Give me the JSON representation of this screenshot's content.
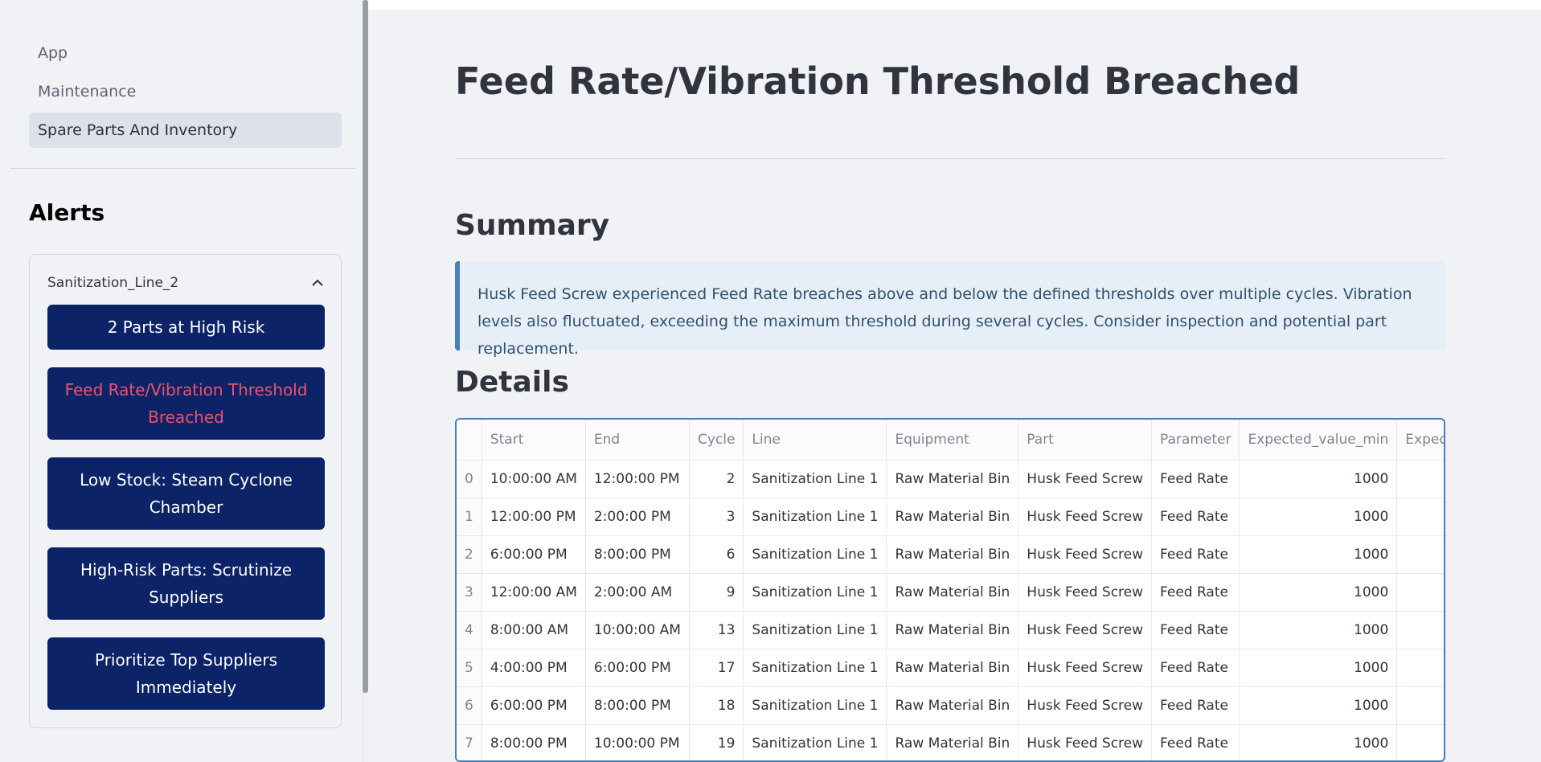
{
  "nav": {
    "items": [
      {
        "label": "App",
        "active": false
      },
      {
        "label": "Maintenance",
        "active": false
      },
      {
        "label": "Spare Parts And Inventory",
        "active": true
      }
    ]
  },
  "alerts": {
    "title": "Alerts",
    "group_label": "Sanitization_Line_2",
    "buttons": [
      {
        "label": "2 Parts at High Risk",
        "active": false
      },
      {
        "label": "Feed Rate/Vibration Threshold Breached",
        "active": true
      },
      {
        "label": "Low Stock: Steam Cyclone Chamber",
        "active": false
      },
      {
        "label": "High-Risk Parts: Scrutinize Suppliers",
        "active": false
      },
      {
        "label": "Prioritize Top Suppliers Immediately",
        "active": false
      }
    ]
  },
  "main": {
    "title": "Feed Rate/Vibration Threshold Breached",
    "summary_heading": "Summary",
    "summary_text": "Husk Feed Screw experienced Feed Rate breaches above and below the defined thresholds over multiple cycles. Vibration levels also fluctuated, exceeding the maximum threshold during several cycles. Consider inspection and potential part replacement.",
    "details_heading": "Details"
  },
  "table": {
    "columns": [
      "",
      "Start",
      "End",
      "Cycle",
      "Line",
      "Equipment",
      "Part",
      "Parameter",
      "Expected_value_min",
      "Expected_"
    ],
    "rows": [
      [
        "0",
        "10:00:00 AM",
        "12:00:00 PM",
        "2",
        "Sanitization Line 1",
        "Raw Material Bin",
        "Husk Feed Screw",
        "Feed Rate",
        "1000",
        ""
      ],
      [
        "1",
        "12:00:00 PM",
        "2:00:00 PM",
        "3",
        "Sanitization Line 1",
        "Raw Material Bin",
        "Husk Feed Screw",
        "Feed Rate",
        "1000",
        ""
      ],
      [
        "2",
        "6:00:00 PM",
        "8:00:00 PM",
        "6",
        "Sanitization Line 1",
        "Raw Material Bin",
        "Husk Feed Screw",
        "Feed Rate",
        "1000",
        ""
      ],
      [
        "3",
        "12:00:00 AM",
        "2:00:00 AM",
        "9",
        "Sanitization Line 1",
        "Raw Material Bin",
        "Husk Feed Screw",
        "Feed Rate",
        "1000",
        ""
      ],
      [
        "4",
        "8:00:00 AM",
        "10:00:00 AM",
        "13",
        "Sanitization Line 1",
        "Raw Material Bin",
        "Husk Feed Screw",
        "Feed Rate",
        "1000",
        ""
      ],
      [
        "5",
        "4:00:00 PM",
        "6:00:00 PM",
        "17",
        "Sanitization Line 1",
        "Raw Material Bin",
        "Husk Feed Screw",
        "Feed Rate",
        "1000",
        ""
      ],
      [
        "6",
        "6:00:00 PM",
        "8:00:00 PM",
        "18",
        "Sanitization Line 1",
        "Raw Material Bin",
        "Husk Feed Screw",
        "Feed Rate",
        "1000",
        ""
      ],
      [
        "7",
        "8:00:00 PM",
        "10:00:00 PM",
        "19",
        "Sanitization Line 1",
        "Raw Material Bin",
        "Husk Feed Screw",
        "Feed Rate",
        "1000",
        ""
      ]
    ]
  },
  "icons": {
    "expander_toggle": "chevron-up-icon"
  },
  "colors": {
    "alert_button_bg": "#0c2368",
    "alert_active_text": "#f2506a",
    "summary_bg": "#e6eef7",
    "summary_border": "#4a7fb5"
  }
}
